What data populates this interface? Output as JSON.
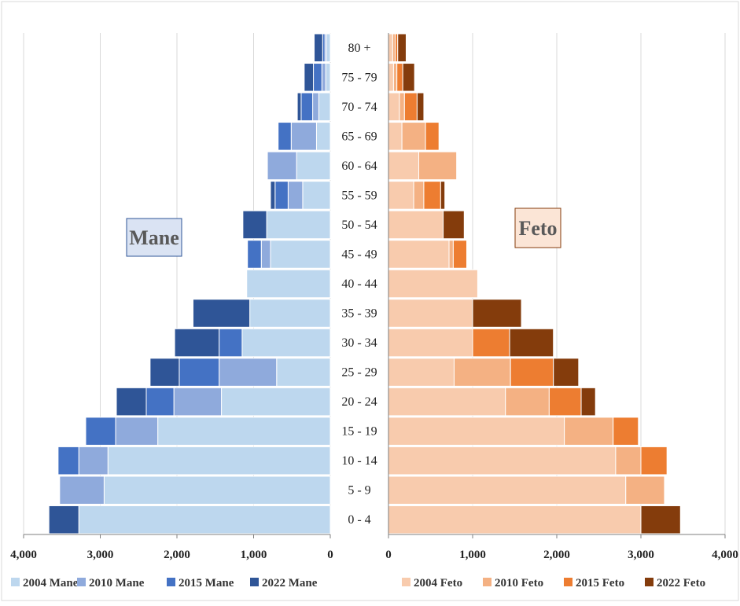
{
  "chart_data": {
    "type": "bar",
    "subtype": "population-pyramid-stacked",
    "categories": [
      "0 - 4",
      "5 - 9",
      "10 - 14",
      "15 - 19",
      "20 - 24",
      "25 - 29",
      "30 - 34",
      "35 - 39",
      "40 - 44",
      "45 - 49",
      "50 - 54",
      "55 - 59",
      "60 - 64",
      "65 - 69",
      "70 - 74",
      "75 - 79",
      "80 +"
    ],
    "xlim": [
      0,
      4000
    ],
    "x_ticks": [
      "4,000",
      "3,000",
      "2,000",
      "1,000",
      "0"
    ],
    "x_ticks_right": [
      "0",
      "1,000",
      "2,000",
      "3,000",
      "4,000"
    ],
    "grid": true,
    "legend_position": "bottom",
    "panels": [
      {
        "label": "Mane",
        "side": "left",
        "series": [
          {
            "name": "2004 Mane",
            "color": "#BDD7EE",
            "values": [
              3280,
              2950,
              2900,
              2250,
              1420,
              700,
              1150,
              1050,
              1090,
              780,
              830,
              360,
              440,
              180,
              150,
              60,
              50
            ]
          },
          {
            "name": "2010 Mane",
            "color": "#8FAADC",
            "values": [
              0,
              580,
              380,
              550,
              620,
              750,
              0,
              0,
              0,
              120,
              0,
              190,
              380,
              330,
              80,
              50,
              20
            ]
          },
          {
            "name": "2015 Mane",
            "color": "#4472C4",
            "values": [
              0,
              0,
              270,
              390,
              360,
              520,
              300,
              0,
              0,
              180,
              0,
              170,
              0,
              170,
              150,
              110,
              30
            ]
          },
          {
            "name": "2022 Mane",
            "color": "#2F5597",
            "values": [
              390,
              0,
              0,
              0,
              390,
              380,
              580,
              740,
              0,
              0,
              310,
              60,
              0,
              0,
              50,
              120,
              110
            ]
          }
        ]
      },
      {
        "label": "Feto",
        "side": "right",
        "series": [
          {
            "name": "2004 Feto",
            "color": "#F8CBAD",
            "values": [
              3000,
              2820,
              2700,
              2090,
              1390,
              780,
              1000,
              1000,
              1060,
              720,
              650,
              300,
              360,
              160,
              130,
              60,
              50
            ]
          },
          {
            "name": "2010 Feto",
            "color": "#F4B183",
            "values": [
              0,
              460,
              300,
              580,
              520,
              670,
              0,
              0,
              0,
              50,
              0,
              120,
              450,
              280,
              60,
              40,
              30
            ]
          },
          {
            "name": "2015 Feto",
            "color": "#ED7D31",
            "values": [
              0,
              0,
              310,
              300,
              380,
              510,
              440,
              0,
              0,
              160,
              0,
              200,
              0,
              160,
              150,
              70,
              30
            ]
          },
          {
            "name": "2022 Feto",
            "color": "#843C0C",
            "values": [
              470,
              0,
              0,
              0,
              170,
              300,
              520,
              580,
              0,
              0,
              250,
              50,
              0,
              0,
              80,
              140,
              100
            ]
          }
        ]
      }
    ]
  }
}
